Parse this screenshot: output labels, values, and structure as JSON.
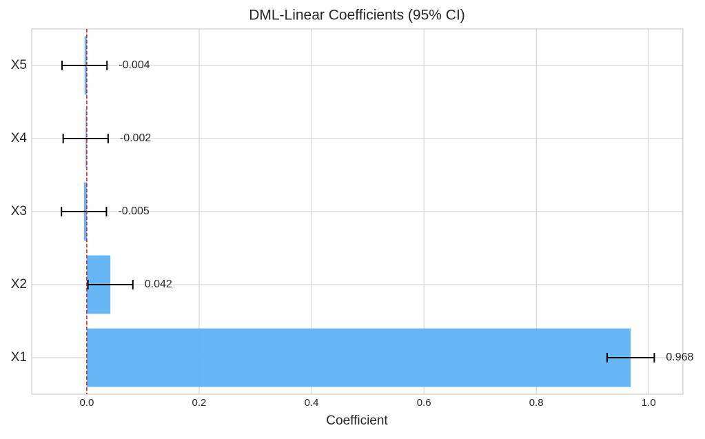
{
  "chart_data": {
    "type": "barh",
    "title": "DML-Linear Coefficients (95% CI)",
    "x_label": "Coefficient",
    "categories": [
      "X1",
      "X2",
      "X3",
      "X4",
      "X5"
    ],
    "values": [
      0.968,
      0.042,
      -0.005,
      -0.002,
      -0.004
    ],
    "errors": [
      0.042,
      0.04,
      0.04,
      0.04,
      0.04
    ],
    "color": "#64b5f6",
    "error_color": "#000000",
    "vline": 0,
    "vline_color": "#d62728",
    "xlim": [
      -0.098,
      1.061
    ],
    "xticks": [
      {
        "value": 0,
        "label": "0.0"
      },
      0.2,
      0.4,
      0.6,
      0.8,
      {
        "value": 1,
        "label": "1.0"
      }
    ],
    "grid": true
  }
}
